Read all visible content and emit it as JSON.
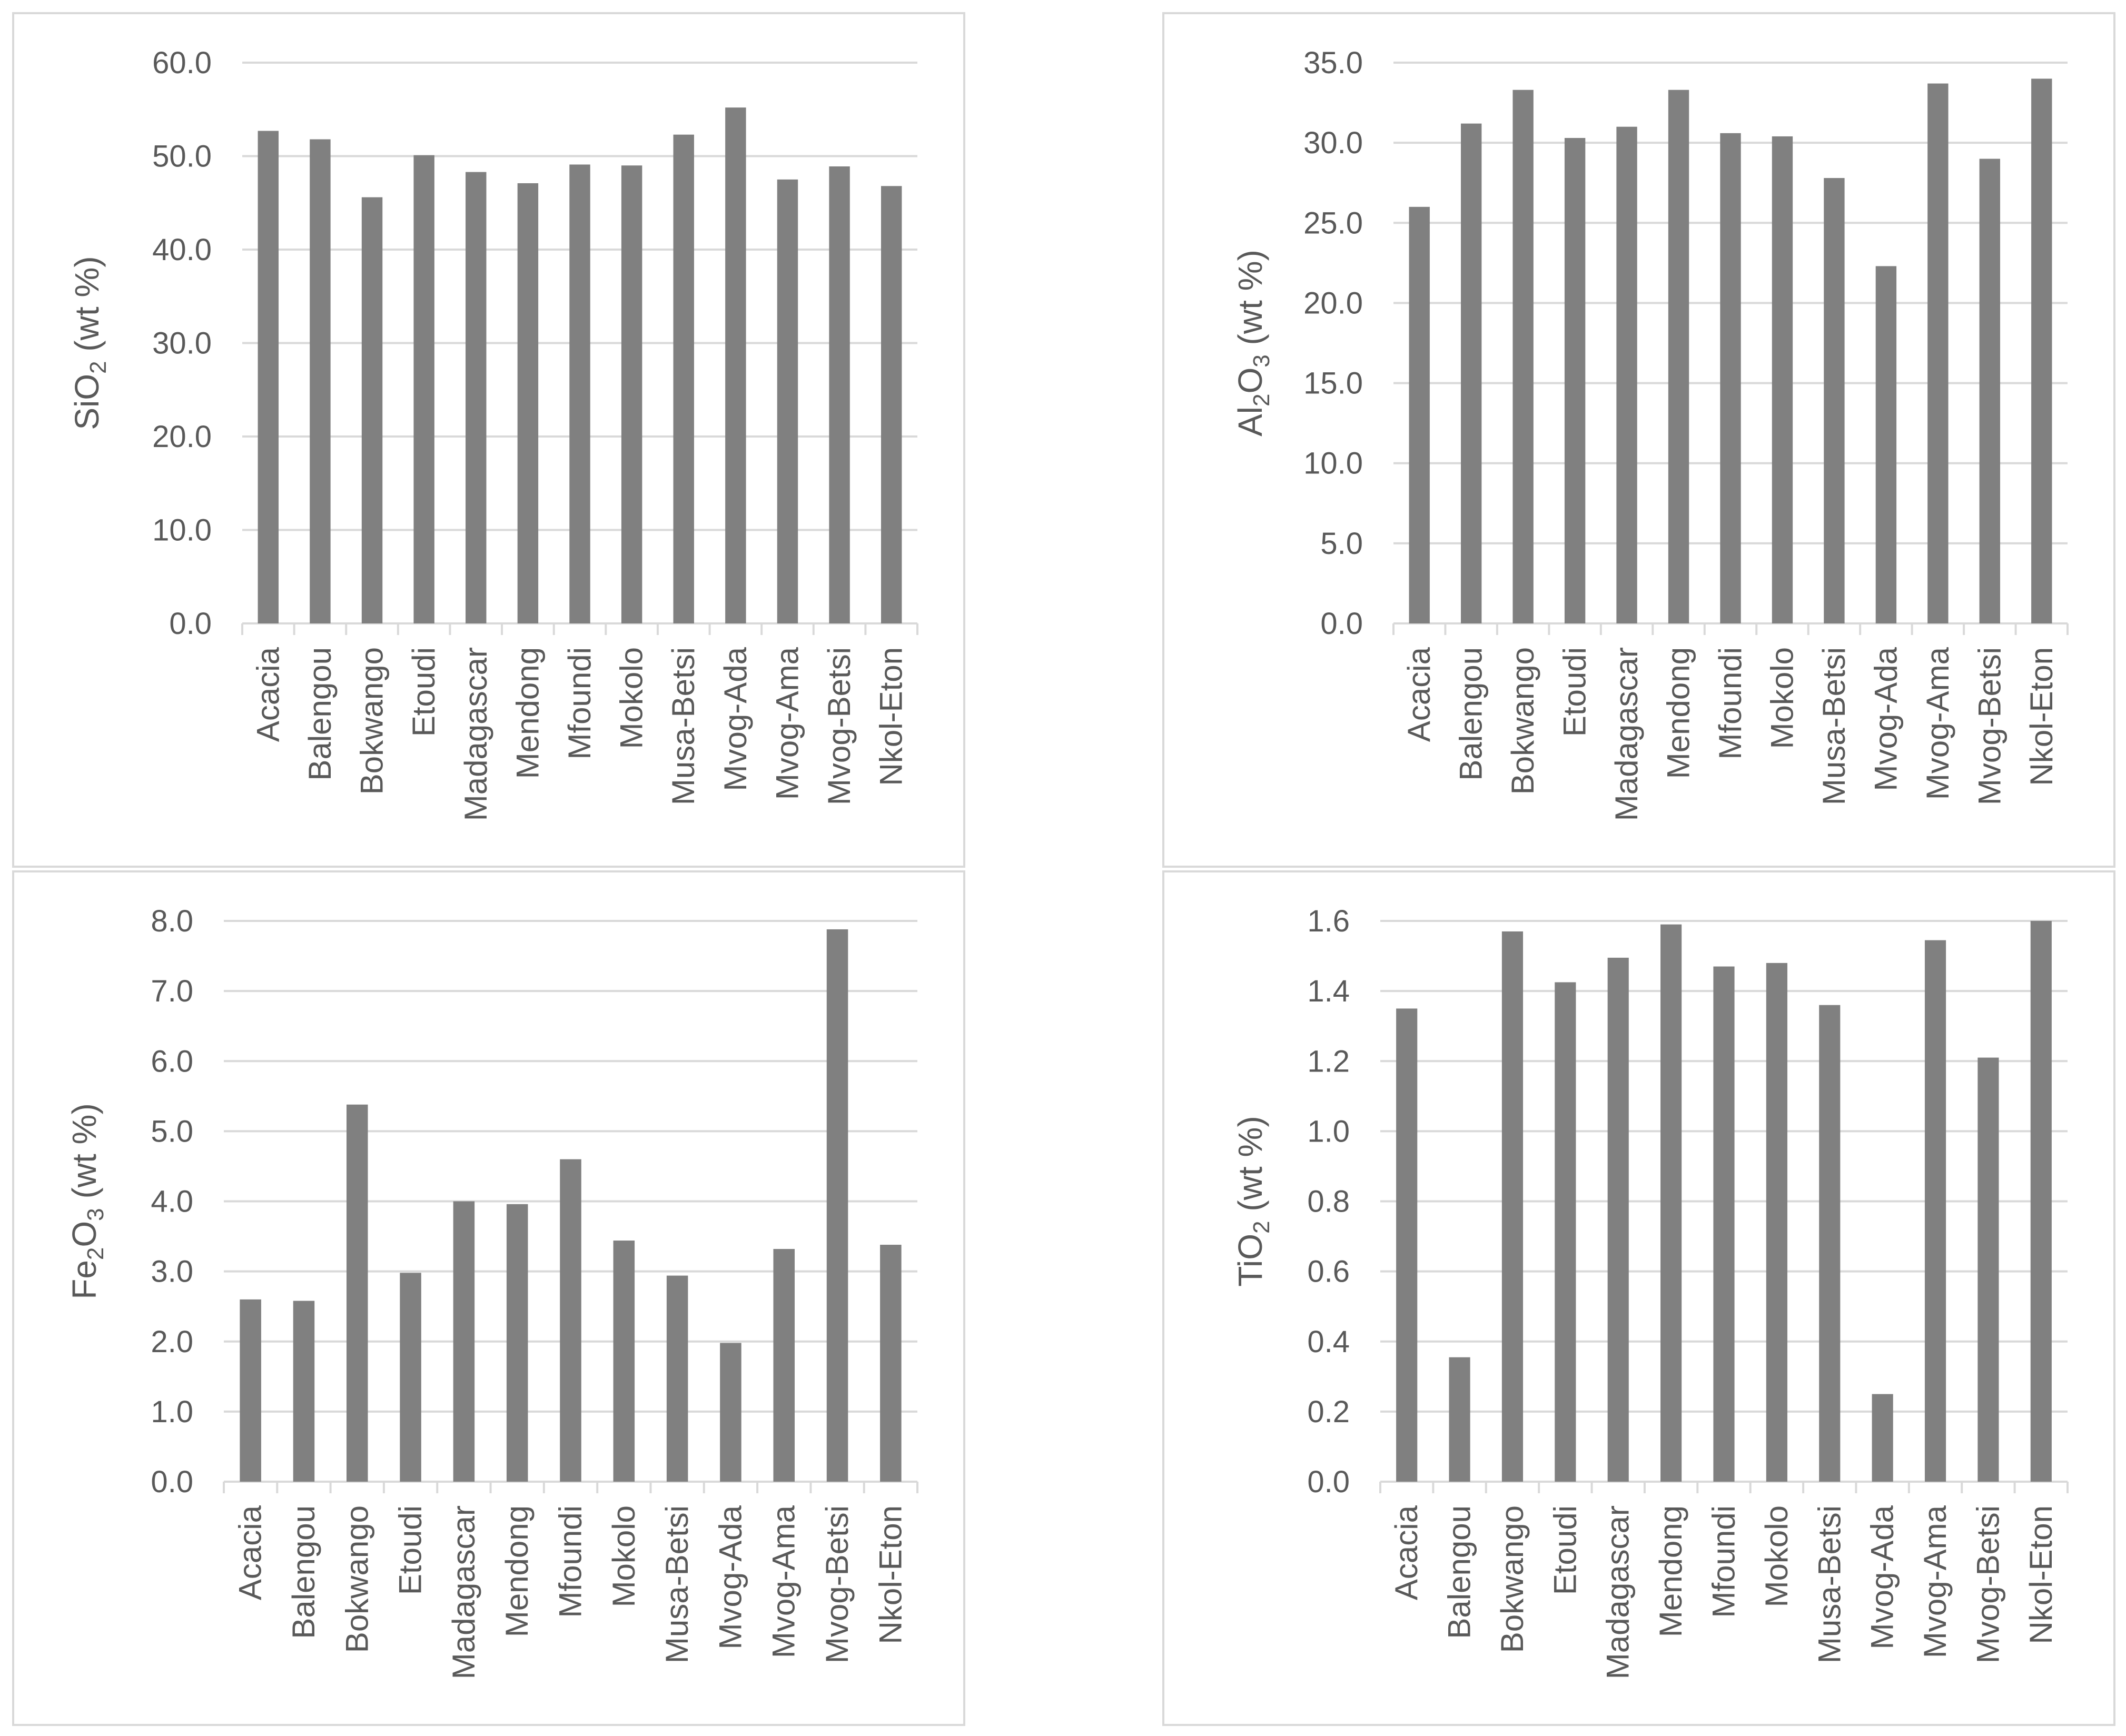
{
  "chart_data": [
    {
      "type": "bar",
      "ylabel": {
        "main": "SiO",
        "sub": "2",
        "rest": " (wt %)"
      },
      "categories": [
        "Acacia",
        "Balengou",
        "Bokwango",
        "Etoudi",
        "Madagascar",
        "Mendong",
        "Mfoundi",
        "Mokolo",
        "Musa-Betsi",
        "Mvog-Ada",
        "Mvog-Ama",
        "Mvog-Betsi",
        "Nkol-Eton"
      ],
      "values": [
        52.7,
        51.8,
        45.6,
        50.1,
        48.3,
        47.1,
        49.1,
        49.0,
        52.3,
        55.2,
        47.5,
        48.9,
        46.8
      ],
      "ylim": [
        0,
        60
      ],
      "yticks": [
        "0.0",
        "10.0",
        "20.0",
        "30.0",
        "40.0",
        "50.0",
        "60.0"
      ],
      "grid": true,
      "bar_color": "#808080"
    },
    {
      "type": "bar",
      "ylabel": {
        "main": "Al",
        "sub": "2",
        "mid": "O",
        "sub2": "3",
        "rest": " (wt %)"
      },
      "categories": [
        "Acacia",
        "Balengou",
        "Bokwango",
        "Etoudi",
        "Madagascar",
        "Mendong",
        "Mfoundi",
        "Mokolo",
        "Musa-Betsi",
        "Mvog-Ada",
        "Mvog-Ama",
        "Mvog-Betsi",
        "Nkol-Eton"
      ],
      "values": [
        26.0,
        31.2,
        33.3,
        30.3,
        31.0,
        33.3,
        30.6,
        30.4,
        27.8,
        22.3,
        33.7,
        29.0,
        34.0
      ],
      "ylim": [
        0,
        35
      ],
      "yticks": [
        "0.0",
        "5.0",
        "10.0",
        "15.0",
        "20.0",
        "25.0",
        "30.0",
        "35.0"
      ],
      "grid": true,
      "bar_color": "#808080"
    },
    {
      "type": "bar",
      "ylabel": {
        "main": "Fe",
        "sub": "2",
        "mid": "O",
        "sub2": "3",
        "rest": " (wt %)"
      },
      "categories": [
        "Acacia",
        "Balengou",
        "Bokwango",
        "Etoudi",
        "Madagascar",
        "Mendong",
        "Mfoundi",
        "Mokolo",
        "Musa-Betsi",
        "Mvog-Ada",
        "Mvog-Ama",
        "Mvog-Betsi",
        "Nkol-Eton"
      ],
      "values": [
        2.6,
        2.58,
        5.38,
        2.98,
        4.0,
        3.96,
        4.6,
        3.44,
        2.94,
        1.98,
        3.32,
        7.88,
        3.38
      ],
      "ylim": [
        0,
        8
      ],
      "yticks": [
        "0.0",
        "1.0",
        "2.0",
        "3.0",
        "4.0",
        "5.0",
        "6.0",
        "7.0",
        "8.0"
      ],
      "grid": true,
      "bar_color": "#808080"
    },
    {
      "type": "bar",
      "ylabel": {
        "main": "TiO",
        "sub": "2",
        "rest": " (wt %)"
      },
      "categories": [
        "Acacia",
        "Balengou",
        "Bokwango",
        "Etoudi",
        "Madagascar",
        "Mendong",
        "Mfoundi",
        "Mokolo",
        "Musa-Betsi",
        "Mvog-Ada",
        "Mvog-Ama",
        "Mvog-Betsi",
        "Nkol-Eton"
      ],
      "values": [
        1.35,
        0.355,
        1.57,
        1.425,
        1.495,
        1.59,
        1.47,
        1.48,
        1.36,
        0.25,
        1.545,
        1.21,
        1.6
      ],
      "ylim": [
        0,
        1.6
      ],
      "yticks": [
        "0.0",
        "0.2",
        "0.4",
        "0.6",
        "0.8",
        "1.0",
        "1.2",
        "1.4",
        "1.6"
      ],
      "grid": true,
      "bar_color": "#808080"
    }
  ]
}
